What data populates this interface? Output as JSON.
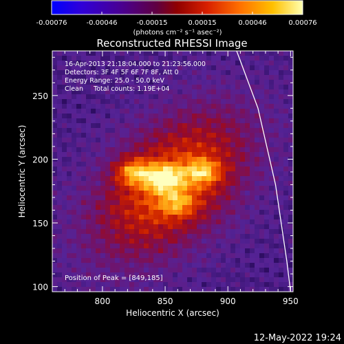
{
  "chart_data": {
    "type": "heatmap",
    "title": "Reconstructed RHESSI Image",
    "xlabel": "Heliocentric X (arcsec)",
    "ylabel": "Heliocentric Y (arcsec)",
    "xlim": [
      760,
      952
    ],
    "ylim": [
      96,
      285
    ],
    "x_ticks": [
      800,
      850,
      900,
      950
    ],
    "y_ticks": [
      100,
      150,
      200,
      250
    ],
    "colorbar": {
      "ticks": [
        "-0.00076",
        "-0.00046",
        "-0.00015",
        "0.00015",
        "0.00046",
        "0.00076"
      ],
      "min": -0.00076,
      "max": 0.00076,
      "units": "(photons cm⁻² s⁻¹ asec⁻²)"
    },
    "annotations": {
      "time_range": "16-Apr-2013 21:18:04.000 to 21:23:56.000",
      "detectors": "Detectors: 3F 4F 5F 6F 7F 8F, Att 0",
      "energy_range": "Energy Range: 25.0 - 50.0 keV",
      "clean_counts": "Clean     Total counts: 1.19E+04",
      "peak": "Position of Peak = [849,185]"
    },
    "peak_position": [
      849,
      185
    ],
    "emission_sources": [
      {
        "x": 849,
        "y": 185,
        "rel_intensity": 1.0
      },
      {
        "x": 825,
        "y": 190,
        "rel_intensity": 0.85
      },
      {
        "x": 880,
        "y": 190,
        "rel_intensity": 0.75
      },
      {
        "x": 860,
        "y": 165,
        "rel_intensity": 0.55
      }
    ],
    "limb_line": [
      [
        907,
        285
      ],
      [
        924,
        240
      ],
      [
        938,
        180
      ],
      [
        947,
        120
      ],
      [
        950,
        96
      ]
    ]
  },
  "footer": {
    "timestamp": "12-May-2022 19:24"
  }
}
